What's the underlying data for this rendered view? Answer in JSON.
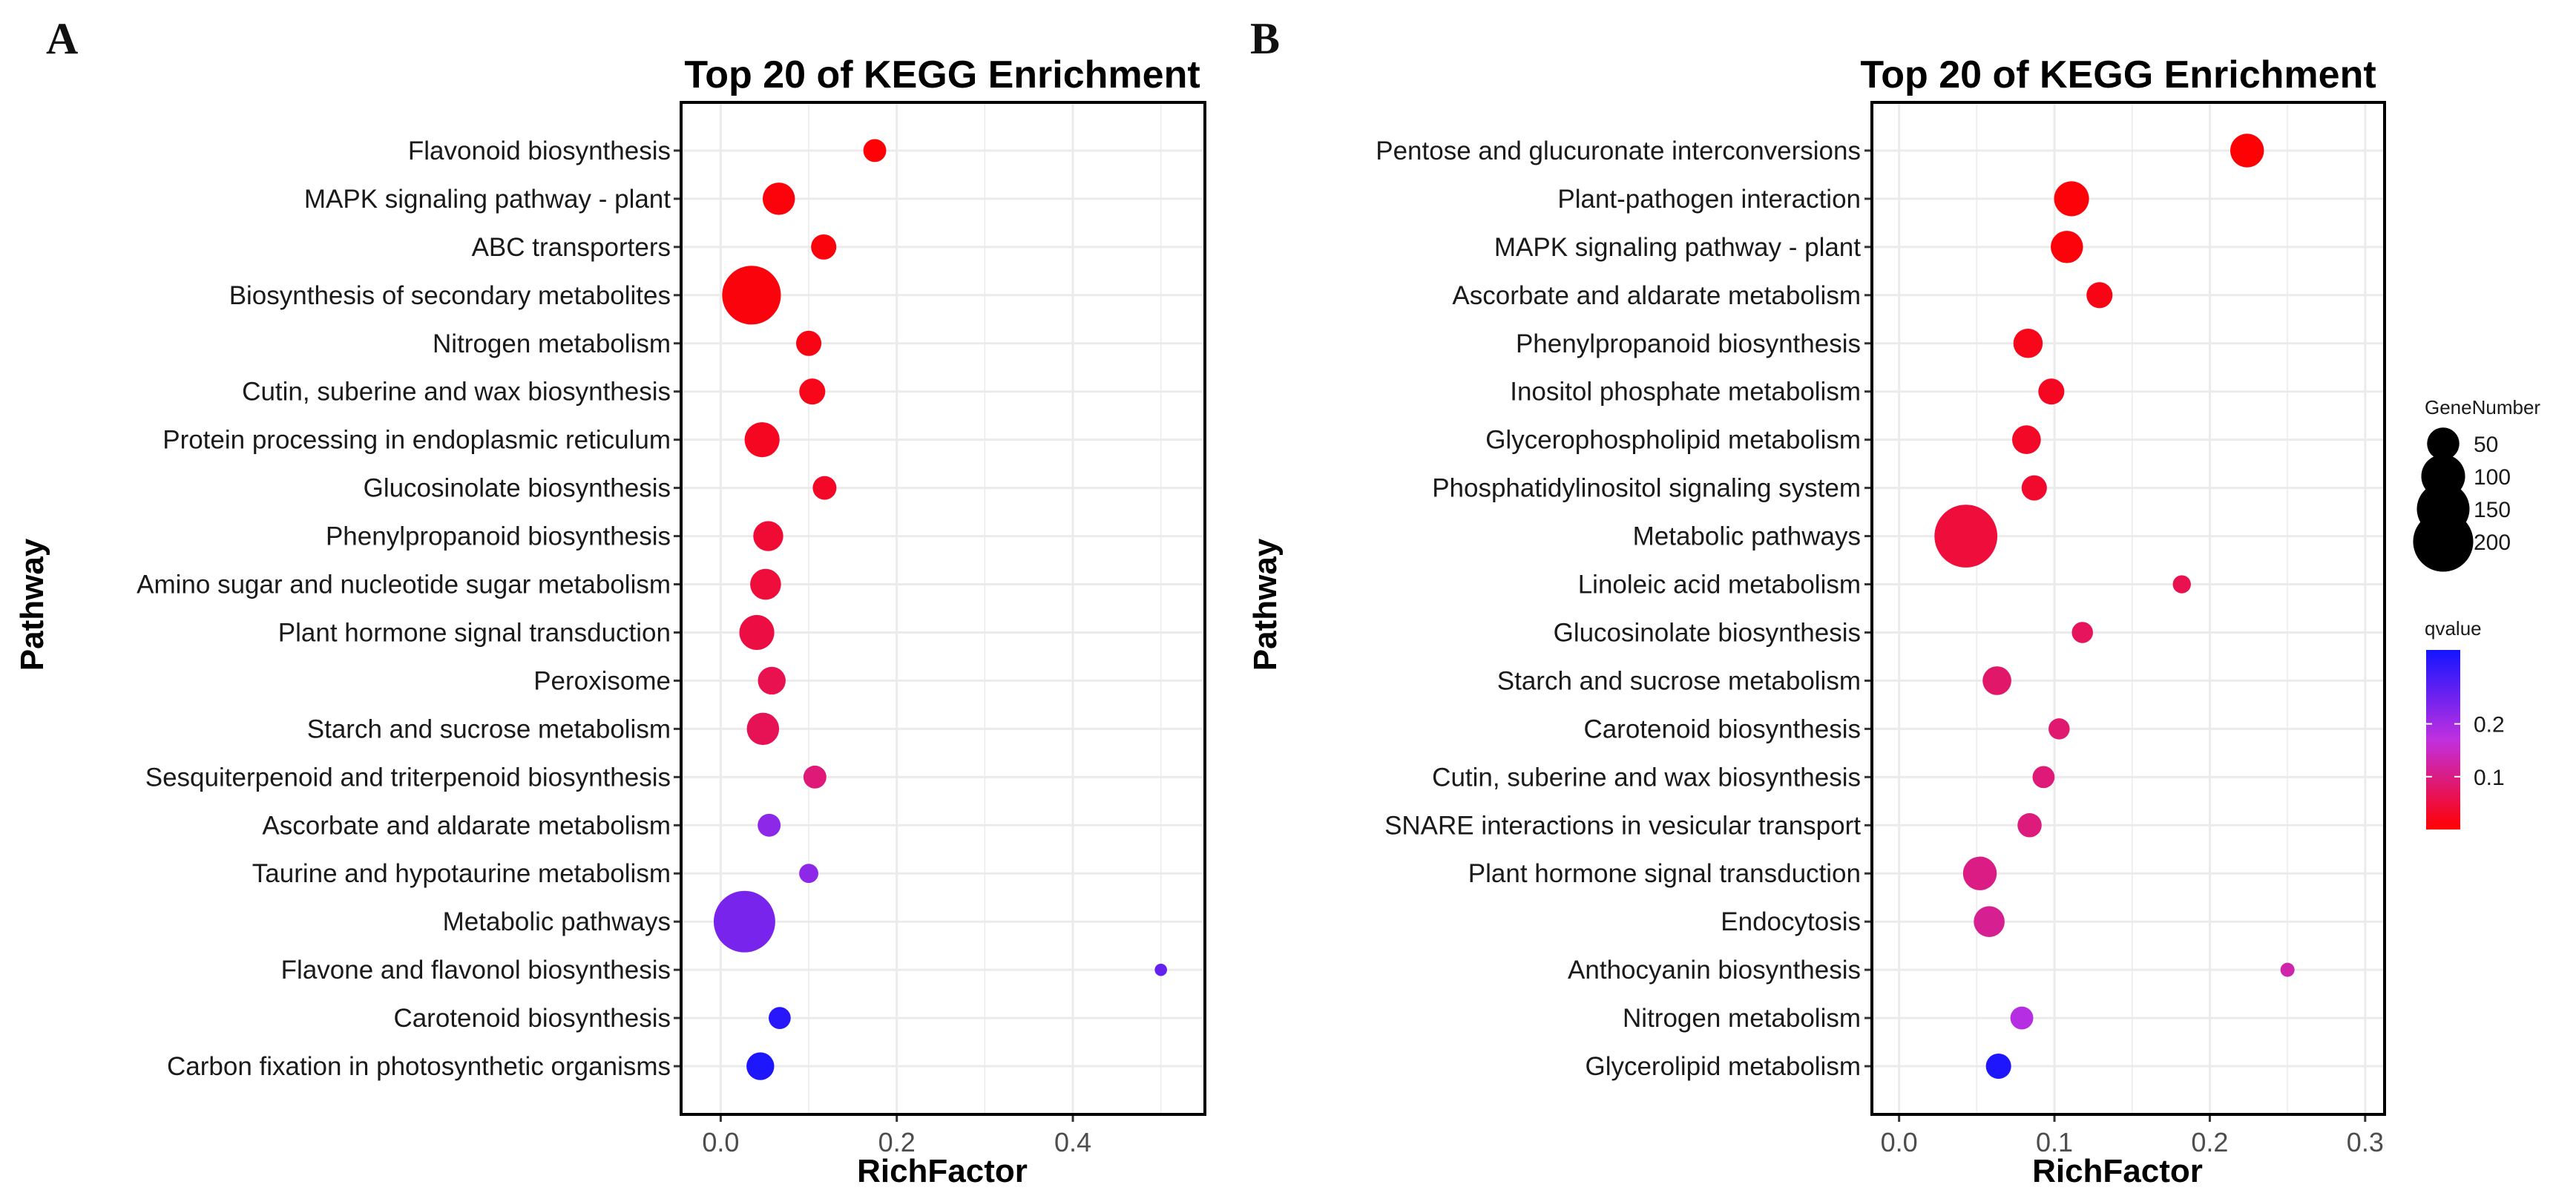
{
  "figure": {
    "panel_labels": [
      "A",
      "B"
    ]
  },
  "chart_data": [
    {
      "panel": "A",
      "type": "scatter",
      "title": "Top 20 of KEGG Enrichment",
      "xlabel": "RichFactor",
      "ylabel": "Pathway",
      "xlim": [
        -0.045,
        0.55
      ],
      "xticks": [
        0.0,
        0.2,
        0.4
      ],
      "xtick_labels": [
        "0.0",
        "0.2",
        "0.4"
      ],
      "grid": true,
      "points": [
        {
          "pathway": "Flavonoid biosynthesis",
          "rich_factor": 0.175,
          "gene_number": 22,
          "qvalue": 0.005
        },
        {
          "pathway": "MAPK signaling pathway - plant",
          "rich_factor": 0.066,
          "gene_number": 50,
          "qvalue": 0.008
        },
        {
          "pathway": "ABC transporters",
          "rich_factor": 0.117,
          "gene_number": 28,
          "qvalue": 0.01
        },
        {
          "pathway": "Biosynthesis of secondary metabolites",
          "rich_factor": 0.035,
          "gene_number": 190,
          "qvalue": 0.01
        },
        {
          "pathway": "Nitrogen metabolism",
          "rich_factor": 0.1,
          "gene_number": 28,
          "qvalue": 0.015
        },
        {
          "pathway": "Cutin, suberine and wax biosynthesis",
          "rich_factor": 0.104,
          "gene_number": 30,
          "qvalue": 0.02
        },
        {
          "pathway": "Protein processing in endoplasmic reticulum",
          "rich_factor": 0.047,
          "gene_number": 60,
          "qvalue": 0.025
        },
        {
          "pathway": "Glucosinolate biosynthesis",
          "rich_factor": 0.118,
          "gene_number": 24,
          "qvalue": 0.03
        },
        {
          "pathway": "Phenylpropanoid biosynthesis",
          "rich_factor": 0.054,
          "gene_number": 42,
          "qvalue": 0.04
        },
        {
          "pathway": "Amino sugar and nucleotide sugar metabolism",
          "rich_factor": 0.051,
          "gene_number": 45,
          "qvalue": 0.045
        },
        {
          "pathway": "Plant hormone signal transduction",
          "rich_factor": 0.041,
          "gene_number": 60,
          "qvalue": 0.05
        },
        {
          "pathway": "Peroxisome",
          "rich_factor": 0.058,
          "gene_number": 35,
          "qvalue": 0.06
        },
        {
          "pathway": "Starch and sucrose metabolism",
          "rich_factor": 0.048,
          "gene_number": 50,
          "qvalue": 0.065
        },
        {
          "pathway": "Sesquiterpenoid and triterpenoid biosynthesis",
          "rich_factor": 0.107,
          "gene_number": 22,
          "qvalue": 0.09
        },
        {
          "pathway": "Ascorbate and aldarate metabolism",
          "rich_factor": 0.055,
          "gene_number": 22,
          "qvalue": 0.22
        },
        {
          "pathway": "Taurine and hypotaurine metabolism",
          "rich_factor": 0.1,
          "gene_number": 14,
          "qvalue": 0.22
        },
        {
          "pathway": "Metabolic pathways",
          "rich_factor": 0.027,
          "gene_number": 210,
          "qvalue": 0.24
        },
        {
          "pathway": "Flavone and flavonol biosynthesis",
          "rich_factor": 0.5,
          "gene_number": 4,
          "qvalue": 0.26
        },
        {
          "pathway": "Carotenoid biosynthesis",
          "rich_factor": 0.067,
          "gene_number": 20,
          "qvalue": 0.32
        },
        {
          "pathway": "Carbon fixation in photosynthetic organisms",
          "rich_factor": 0.045,
          "gene_number": 35,
          "qvalue": 0.33
        }
      ]
    },
    {
      "panel": "B",
      "type": "scatter",
      "title": "Top 20 of KEGG Enrichment",
      "xlabel": "RichFactor",
      "ylabel": "Pathway",
      "xlim": [
        -0.0175,
        0.3125
      ],
      "xticks": [
        0.0,
        0.1,
        0.2,
        0.3
      ],
      "xtick_labels": [
        "0.0",
        "0.1",
        "0.2",
        "0.3"
      ],
      "grid": true,
      "points": [
        {
          "pathway": "Pentose and glucuronate interconversions",
          "rich_factor": 0.224,
          "gene_number": 55,
          "qvalue": 0.004
        },
        {
          "pathway": "Plant-pathogen interaction",
          "rich_factor": 0.111,
          "gene_number": 60,
          "qvalue": 0.006
        },
        {
          "pathway": "MAPK signaling pathway - plant",
          "rich_factor": 0.108,
          "gene_number": 50,
          "qvalue": 0.008
        },
        {
          "pathway": "Ascorbate and aldarate metabolism",
          "rich_factor": 0.129,
          "gene_number": 30,
          "qvalue": 0.015
        },
        {
          "pathway": "Phenylpropanoid biosynthesis",
          "rich_factor": 0.083,
          "gene_number": 40,
          "qvalue": 0.02
        },
        {
          "pathway": "Inositol phosphate metabolism",
          "rich_factor": 0.098,
          "gene_number": 30,
          "qvalue": 0.025
        },
        {
          "pathway": "Glycerophospholipid metabolism",
          "rich_factor": 0.082,
          "gene_number": 38,
          "qvalue": 0.03
        },
        {
          "pathway": "Phosphatidylinositol signaling system",
          "rich_factor": 0.087,
          "gene_number": 28,
          "qvalue": 0.035
        },
        {
          "pathway": "Metabolic pathways",
          "rich_factor": 0.043,
          "gene_number": 220,
          "qvalue": 0.045
        },
        {
          "pathway": "Linoleic acid metabolism",
          "rich_factor": 0.182,
          "gene_number": 12,
          "qvalue": 0.06
        },
        {
          "pathway": "Glucosinolate biosynthesis",
          "rich_factor": 0.118,
          "gene_number": 18,
          "qvalue": 0.07
        },
        {
          "pathway": "Starch and sucrose metabolism",
          "rich_factor": 0.063,
          "gene_number": 38,
          "qvalue": 0.08
        },
        {
          "pathway": "Carotenoid biosynthesis",
          "rich_factor": 0.103,
          "gene_number": 18,
          "qvalue": 0.085
        },
        {
          "pathway": "Cutin, suberine and wax biosynthesis",
          "rich_factor": 0.093,
          "gene_number": 20,
          "qvalue": 0.09
        },
        {
          "pathway": "SNARE interactions in vesicular transport",
          "rich_factor": 0.084,
          "gene_number": 25,
          "qvalue": 0.095
        },
        {
          "pathway": "Plant hormone signal transduction",
          "rich_factor": 0.052,
          "gene_number": 55,
          "qvalue": 0.1
        },
        {
          "pathway": "Endocytosis",
          "rich_factor": 0.058,
          "gene_number": 45,
          "qvalue": 0.11
        },
        {
          "pathway": "Anthocyanin biosynthesis",
          "rich_factor": 0.25,
          "gene_number": 6,
          "qvalue": 0.13
        },
        {
          "pathway": "Nitrogen metabolism",
          "rich_factor": 0.079,
          "gene_number": 22,
          "qvalue": 0.18
        },
        {
          "pathway": "Glycerolipid metabolism",
          "rich_factor": 0.064,
          "gene_number": 28,
          "qvalue": 0.33
        }
      ]
    }
  ],
  "legend": {
    "size_title": "GeneNumber",
    "size_values": [
      50,
      100,
      150,
      200
    ],
    "size_labels": [
      "50",
      "100",
      "150",
      "200"
    ],
    "color_title": "qvalue",
    "color_ticks": [
      0.2,
      0.1
    ],
    "color_tick_labels": [
      "0.2",
      "0.1"
    ],
    "color_range": [
      0.0,
      0.34
    ],
    "colors": {
      "low": "#ff0000",
      "mid": "#c030e0",
      "high": "#1414ff"
    }
  }
}
